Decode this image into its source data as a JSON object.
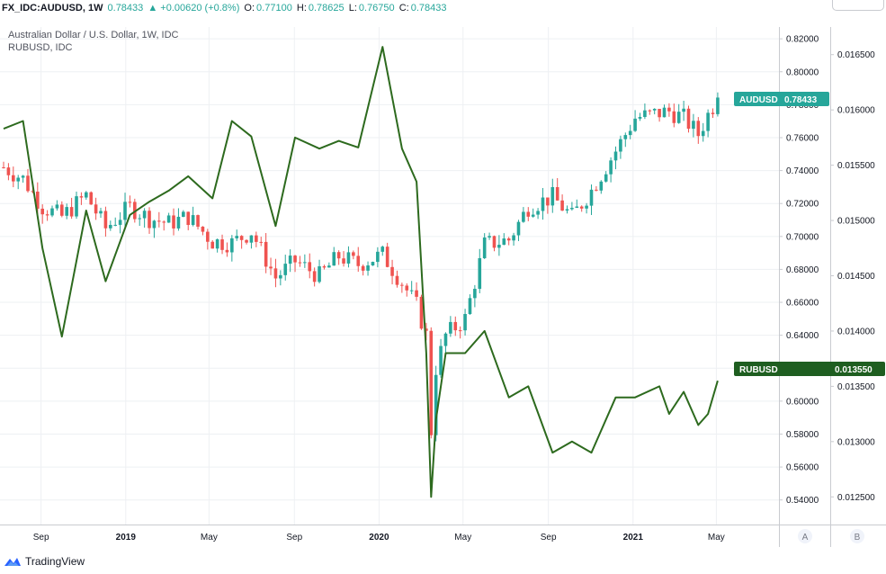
{
  "header": {
    "symbol": "FX_IDC:AUDUSD, 1W",
    "last": "0.78433",
    "change": "▲ +0.00620 (+0.8%)",
    "o_label": "O:",
    "o_val": "0.77100",
    "h_label": "H:",
    "h_val": "0.78625",
    "l_label": "L:",
    "l_val": "0.76750",
    "c_label": "C:",
    "c_val": "0.78433"
  },
  "legend": {
    "main": "Australian Dollar / U.S. Dollar, 1W, IDC",
    "compare": "RUBUSD, IDC"
  },
  "scale_a": {
    "ticks": [
      "0.82000",
      "0.80000",
      "0.78000",
      "0.76000",
      "0.74000",
      "0.72000",
      "0.70000",
      "0.68000",
      "0.66000",
      "0.64000",
      "0.62000",
      "0.60000",
      "0.58000",
      "0.56000",
      "0.54000"
    ],
    "badge_symbol": "AUDUSD",
    "badge_value": "0.78433",
    "badge_color": "#26a69a",
    "footer": "A"
  },
  "scale_b": {
    "ticks": [
      "0.016500",
      "0.016000",
      "0.015500",
      "0.015000",
      "0.014500",
      "0.014000",
      "0.013500",
      "0.013000",
      "0.012500"
    ],
    "badge_symbol": "RUBUSD",
    "badge_value": "0.013550",
    "badge_color": "#1e5e20",
    "footer": "B"
  },
  "time_axis": {
    "labels": [
      "Sep",
      "2019",
      "May",
      "Sep",
      "2020",
      "May",
      "Sep",
      "2021",
      "May"
    ]
  },
  "brand": "TradingView",
  "colors": {
    "up": "#26a69a",
    "down": "#ef5350",
    "compare_line": "#2d6a1e",
    "grid": "#eef0f3"
  },
  "chart_data": {
    "type": "line",
    "title": "Australian Dollar / U.S. Dollar, 1W, IDC",
    "xlabel": "",
    "ylabel": "",
    "x_range": [
      "2018-07-09",
      "2021-05-07"
    ],
    "scale_left_label": "A",
    "scale_right_label": "B",
    "series": [
      {
        "name": "AUDUSD",
        "type": "candlestick",
        "scale": "A",
        "ylim": [
          0.53,
          0.825
        ],
        "x": [
          "2018-07-09",
          "2018-08-06",
          "2018-09-03",
          "2018-10-01",
          "2018-11-05",
          "2018-12-03",
          "2019-01-07",
          "2019-02-04",
          "2019-03-04",
          "2019-04-01",
          "2019-05-06",
          "2019-06-03",
          "2019-07-01",
          "2019-08-05",
          "2019-09-02",
          "2019-10-07",
          "2019-11-04",
          "2019-12-02",
          "2020-01-06",
          "2020-02-03",
          "2020-02-24",
          "2020-03-09",
          "2020-03-16",
          "2020-03-23",
          "2020-04-06",
          "2020-05-04",
          "2020-06-01",
          "2020-07-06",
          "2020-08-03",
          "2020-09-07",
          "2020-10-05",
          "2020-11-02",
          "2020-12-07",
          "2021-01-04",
          "2021-02-08",
          "2021-02-22",
          "2021-03-15",
          "2021-04-05",
          "2021-04-19",
          "2021-05-03"
        ],
        "close": [
          0.742,
          0.735,
          0.718,
          0.712,
          0.725,
          0.705,
          0.718,
          0.711,
          0.708,
          0.712,
          0.697,
          0.696,
          0.703,
          0.675,
          0.685,
          0.676,
          0.688,
          0.683,
          0.689,
          0.672,
          0.658,
          0.64,
          0.582,
          0.62,
          0.64,
          0.65,
          0.695,
          0.698,
          0.718,
          0.724,
          0.712,
          0.728,
          0.752,
          0.772,
          0.775,
          0.776,
          0.772,
          0.762,
          0.774,
          0.78433
        ]
      },
      {
        "name": "RUBUSD",
        "type": "line",
        "scale": "B",
        "ylim": [
          0.01225,
          0.01675
        ],
        "x": [
          "2018-07-09",
          "2018-08-06",
          "2018-09-03",
          "2018-10-01",
          "2018-11-05",
          "2018-12-03",
          "2019-01-07",
          "2019-02-04",
          "2019-03-04",
          "2019-04-01",
          "2019-05-06",
          "2019-06-03",
          "2019-07-01",
          "2019-08-05",
          "2019-09-02",
          "2019-10-07",
          "2019-11-04",
          "2019-12-02",
          "2020-01-06",
          "2020-02-03",
          "2020-02-24",
          "2020-03-09",
          "2020-03-16",
          "2020-03-23",
          "2020-04-06",
          "2020-05-04",
          "2020-06-01",
          "2020-07-06",
          "2020-08-03",
          "2020-09-07",
          "2020-10-05",
          "2020-11-02",
          "2020-12-07",
          "2021-01-04",
          "2021-02-08",
          "2021-02-22",
          "2021-03-15",
          "2021-04-05",
          "2021-04-19",
          "2021-05-03"
        ],
        "y": [
          0.01583,
          0.0159,
          0.01475,
          0.01395,
          0.01509,
          0.01445,
          0.01505,
          0.01517,
          0.01527,
          0.0154,
          0.0152,
          0.0159,
          0.01576,
          0.01495,
          0.01575,
          0.01565,
          0.01572,
          0.01566,
          0.01657,
          0.01565,
          0.01535,
          0.0138,
          0.0125,
          0.0132,
          0.0138,
          0.0138,
          0.014,
          0.0134,
          0.0135,
          0.0129,
          0.013,
          0.0129,
          0.0134,
          0.0134,
          0.0135,
          0.01325,
          0.01345,
          0.01315,
          0.01325,
          0.01355
        ]
      }
    ]
  }
}
